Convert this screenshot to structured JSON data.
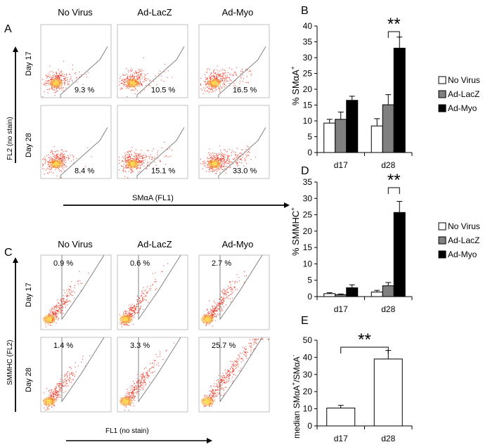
{
  "panels": {
    "A": {
      "letter": "A",
      "columns": [
        "No Virus",
        "Ad-LacZ",
        "Ad-Myo"
      ],
      "rows": [
        "Day 17",
        "Day 28"
      ],
      "y_label": "FL2 (no stain)",
      "x_label": "SMαA (FL1)",
      "percents": [
        [
          "9.3 %",
          "10.5 %",
          "16.5 %"
        ],
        [
          "8.4 %",
          "15.1 %",
          "33.0 %"
        ]
      ]
    },
    "C": {
      "letter": "C",
      "columns": [
        "No Virus",
        "Ad-LacZ",
        "Ad-Myo"
      ],
      "rows": [
        "Day 17",
        "Day 28"
      ],
      "y_label": "SMMHC (FL2)",
      "x_label": "FL1 (no stain)",
      "percents": [
        [
          "0.9 %",
          "0.6 %",
          "2.7 %"
        ],
        [
          "1.4 %",
          "3.3 %",
          "25.7 %"
        ]
      ]
    }
  },
  "colors": {
    "no_virus": "#ffffff",
    "ad_lacz": "#808080",
    "ad_myo": "#000000",
    "dots": "#e8321e"
  },
  "chart_data": [
    {
      "id": "B",
      "letter": "B",
      "type": "bar",
      "categories": [
        "d17",
        "d28"
      ],
      "series": [
        {
          "name": "No Virus",
          "values": [
            9.3,
            8.4
          ],
          "errors": [
            1.2,
            2.3
          ]
        },
        {
          "name": "Ad-LacZ",
          "values": [
            10.5,
            15.1
          ],
          "errors": [
            2.3,
            3.2
          ]
        },
        {
          "name": "Ad-Myo",
          "values": [
            16.5,
            33.0
          ],
          "errors": [
            1.3,
            3.5
          ]
        }
      ],
      "ylabel": "% SMαA+",
      "ylabel_main": "% SMαA",
      "ylabel_sup": "+",
      "ylim": [
        0,
        40
      ],
      "yticks": [
        "0",
        "5",
        "10",
        "15",
        "20",
        "25",
        "30",
        "35",
        "40"
      ],
      "significance": "**",
      "legend": "right"
    },
    {
      "id": "D",
      "letter": "D",
      "type": "bar",
      "categories": [
        "d17",
        "d28"
      ],
      "series": [
        {
          "name": "No Virus",
          "values": [
            0.9,
            1.4
          ],
          "errors": [
            0.3,
            0.5
          ]
        },
        {
          "name": "Ad-LacZ",
          "values": [
            0.6,
            3.3
          ],
          "errors": [
            0.2,
            1.0
          ]
        },
        {
          "name": "Ad-Myo",
          "values": [
            2.7,
            25.7
          ],
          "errors": [
            0.9,
            3.4
          ]
        }
      ],
      "ylabel": "% SMMHC+",
      "ylabel_main": "% SMMHC",
      "ylabel_sup": "+",
      "ylim": [
        0,
        35
      ],
      "yticks": [
        "0",
        "5",
        "10",
        "15",
        "20",
        "25",
        "30",
        "35"
      ],
      "significance": "**",
      "legend": "right"
    },
    {
      "id": "E",
      "letter": "E",
      "type": "bar",
      "categories": [
        "d17",
        "d28"
      ],
      "series": [
        {
          "name": "median",
          "values": [
            10.4,
            39.0
          ],
          "errors": [
            1.6,
            5.0
          ]
        }
      ],
      "ylabel": "median SMαA+/SMαA-",
      "ylabel_a": "median SMαA",
      "ylabel_b": "+",
      "ylabel_c": "/SMαA",
      "ylabel_d": "-",
      "ylim": [
        0,
        50
      ],
      "yticks": [
        "0",
        "10",
        "20",
        "30",
        "40",
        "50"
      ],
      "significance": "**"
    }
  ]
}
